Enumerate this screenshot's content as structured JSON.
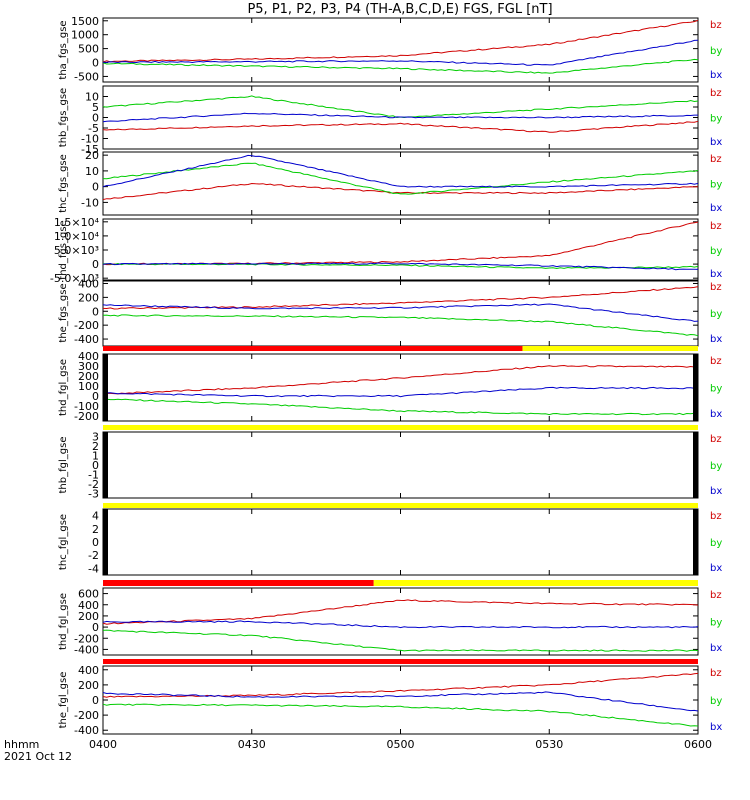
{
  "title": "P5, P1, P2, P3, P4 (TH-A,B,C,D,E) FGS, FGL [nT]",
  "x_axis": {
    "start_label": "hhmm",
    "date_label": "2021 Oct 12",
    "ticks": [
      "0400",
      "0430",
      "0500",
      "0530",
      "0600"
    ]
  },
  "legend": [
    "bz",
    "by",
    "bx"
  ],
  "colors": {
    "bz": "#d00000",
    "by": "#00cc00",
    "bx": "#0000cc",
    "mode_slow": "#ff0000",
    "mode_fast": "#ffff00",
    "gap": "#000000"
  },
  "chart_data": [
    {
      "type": "line",
      "ylabel": "tha_fgs_gse",
      "ylim": [
        -700,
        1600
      ],
      "yticks": [
        "1500",
        "1000",
        "500",
        "0",
        "-500"
      ],
      "ytick_values": [
        1500,
        1000,
        500,
        0,
        -500
      ],
      "x": [
        "0400",
        "0430",
        "0500",
        "0530",
        "0600"
      ],
      "series": [
        {
          "name": "bz",
          "values": [
            40,
            120,
            250,
            650,
            1500
          ]
        },
        {
          "name": "by",
          "values": [
            -30,
            -130,
            -220,
            -380,
            120
          ]
        },
        {
          "name": "bx",
          "values": [
            10,
            30,
            60,
            -100,
            800
          ]
        }
      ]
    },
    {
      "type": "line",
      "ylabel": "thb_fgs_gse",
      "ylim": [
        -15,
        15
      ],
      "yticks": [
        "10",
        "5",
        "0",
        "-5",
        "-10",
        "-15"
      ],
      "ytick_values": [
        10,
        5,
        0,
        -5,
        -10,
        -15
      ],
      "x": [
        "0400",
        "0430",
        "0500",
        "0530",
        "0600"
      ],
      "series": [
        {
          "name": "bz",
          "values": [
            -6,
            -4,
            -3,
            -7,
            -2
          ]
        },
        {
          "name": "by",
          "values": [
            5,
            10,
            0,
            4,
            8
          ]
        },
        {
          "name": "bx",
          "values": [
            -2,
            2,
            0,
            0,
            1
          ]
        }
      ]
    },
    {
      "type": "line",
      "ylabel": "thc_fgs_gse",
      "ylim": [
        -18,
        22
      ],
      "yticks": [
        "20",
        "10",
        "0",
        "-10"
      ],
      "ytick_values": [
        20,
        10,
        0,
        -10
      ],
      "x": [
        "0400",
        "0430",
        "0500",
        "0530",
        "0600"
      ],
      "series": [
        {
          "name": "bz",
          "values": [
            -8,
            2,
            -4,
            -4,
            0
          ]
        },
        {
          "name": "by",
          "values": [
            5,
            15,
            -5,
            3,
            10
          ]
        },
        {
          "name": "bx",
          "values": [
            0,
            20,
            0,
            0,
            2
          ]
        }
      ]
    },
    {
      "type": "line",
      "ylabel": "thd_fgs_gse",
      "ylim": [
        -6000,
        16000
      ],
      "yticks": [
        "1.5×10⁴",
        "1.0×10⁴",
        "5.0×10³",
        "0",
        "-5.0×10³"
      ],
      "ytick_values": [
        15000,
        10000,
        5000,
        0,
        -5000
      ],
      "x": [
        "0400",
        "0430",
        "0500",
        "0530",
        "0600"
      ],
      "series": [
        {
          "name": "bz",
          "values": [
            0,
            200,
            800,
            3000,
            15000
          ]
        },
        {
          "name": "by",
          "values": [
            0,
            -100,
            -400,
            -1500,
            -1000
          ]
        },
        {
          "name": "bx",
          "values": [
            0,
            100,
            200,
            -600,
            -2000
          ]
        }
      ]
    },
    {
      "type": "line",
      "ylabel": "the_fgs_gse",
      "ylim": [
        -500,
        450
      ],
      "yticks": [
        "400",
        "200",
        "0",
        "-200",
        "-400"
      ],
      "ytick_values": [
        400,
        200,
        0,
        -200,
        -400
      ],
      "x": [
        "0400",
        "0430",
        "0500",
        "0530",
        "0600"
      ],
      "series": [
        {
          "name": "bz",
          "values": [
            40,
            60,
            120,
            200,
            350
          ]
        },
        {
          "name": "by",
          "values": [
            -60,
            -70,
            -90,
            -150,
            -350
          ]
        },
        {
          "name": "bx",
          "values": [
            90,
            40,
            50,
            100,
            -150
          ]
        }
      ]
    },
    {
      "type": "line",
      "ylabel": "thd_fgl_gse",
      "ylim": [
        -250,
        420
      ],
      "yticks": [
        "400",
        "300",
        "200",
        "100",
        "0",
        "-100",
        "-200"
      ],
      "ytick_values": [
        400,
        300,
        200,
        100,
        0,
        -100,
        -200
      ],
      "x": [
        "0400",
        "0430",
        "0500",
        "0530",
        "0600"
      ],
      "series": [
        {
          "name": "bz",
          "values": [
            20,
            80,
            180,
            300,
            290
          ]
        },
        {
          "name": "by",
          "values": [
            -30,
            -80,
            -150,
            -180,
            -180
          ]
        },
        {
          "name": "bx",
          "values": [
            30,
            0,
            0,
            80,
            80
          ]
        }
      ]
    },
    {
      "type": "line",
      "ylabel": "thb_fgl_gse",
      "ylim": [
        -3.5,
        3.5
      ],
      "yticks": [
        "3",
        "2",
        "1",
        "0",
        "-1",
        "-2",
        "-3"
      ],
      "ytick_values": [
        3,
        2,
        1,
        0,
        -1,
        -2,
        -3
      ],
      "x": [
        "0400",
        "0430",
        "0500",
        "0530",
        "0600"
      ],
      "series": []
    },
    {
      "type": "line",
      "ylabel": "thc_fgl_gse",
      "ylim": [
        -5,
        5
      ],
      "yticks": [
        "4",
        "2",
        "0",
        "-2",
        "-4"
      ],
      "ytick_values": [
        4,
        2,
        0,
        -2,
        -4
      ],
      "x": [
        "0400",
        "0430",
        "0500",
        "0530",
        "0600"
      ],
      "series": []
    },
    {
      "type": "line",
      "ylabel": "thd_fgl_gse",
      "ylim": [
        -500,
        700
      ],
      "yticks": [
        "600",
        "400",
        "200",
        "0",
        "-200",
        "-400"
      ],
      "ytick_values": [
        600,
        400,
        200,
        0,
        -200,
        -400
      ],
      "x": [
        "0400",
        "0430",
        "0500",
        "0530",
        "0600"
      ],
      "series": [
        {
          "name": "bz",
          "values": [
            60,
            150,
            480,
            420,
            400
          ]
        },
        {
          "name": "by",
          "values": [
            -60,
            -150,
            -420,
            -420,
            -420
          ]
        },
        {
          "name": "bx",
          "values": [
            90,
            100,
            0,
            0,
            0
          ]
        }
      ]
    },
    {
      "type": "line",
      "ylabel": "the_fgl_gse",
      "ylim": [
        -450,
        450
      ],
      "yticks": [
        "400",
        "200",
        "0",
        "-200",
        "-400"
      ],
      "ytick_values": [
        400,
        200,
        0,
        -200,
        -400
      ],
      "x": [
        "0400",
        "0430",
        "0500",
        "0530",
        "0600"
      ],
      "series": [
        {
          "name": "bz",
          "values": [
            40,
            60,
            120,
            200,
            350
          ]
        },
        {
          "name": "by",
          "values": [
            -60,
            -70,
            -90,
            -150,
            -350
          ]
        },
        {
          "name": "bx",
          "values": [
            90,
            40,
            50,
            100,
            -150
          ]
        }
      ]
    }
  ],
  "mode_bars": [
    {
      "segments": [
        {
          "color": "mode_slow",
          "from": 0,
          "to": 0.705
        },
        {
          "color": "mode_fast",
          "from": 0.705,
          "to": 1
        }
      ]
    },
    {
      "segments": [
        {
          "color": "mode_fast",
          "from": 0,
          "to": 1
        }
      ]
    },
    {
      "segments": [
        {
          "color": "mode_fast",
          "from": 0,
          "to": 1
        }
      ]
    },
    {
      "segments": [
        {
          "color": "mode_slow",
          "from": 0,
          "to": 0.455
        },
        {
          "color": "mode_fast",
          "from": 0.455,
          "to": 1
        }
      ]
    },
    {
      "segments": [
        {
          "color": "mode_slow",
          "from": 0,
          "to": 1
        }
      ]
    }
  ]
}
